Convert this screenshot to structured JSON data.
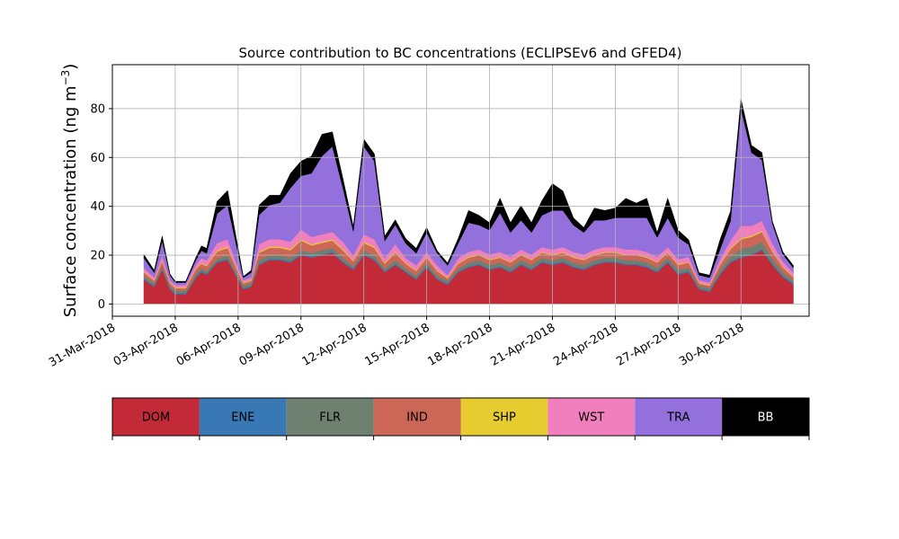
{
  "chart_data": {
    "type": "area",
    "stacked": true,
    "title": "Source contribution to BC concentrations (ECLIPSEv6 and GFED4)",
    "xlabel": "",
    "ylabel": "Surface concentration (ng m⁻³)",
    "ylabel_main": "Surface concentration (ng m",
    "ylabel_sup": "−3",
    "ylabel_close": ")",
    "xlim": [
      "2018-03-31T00:00",
      "2018-05-03T06:00"
    ],
    "ylim": [
      -5,
      98
    ],
    "yticks": [
      0,
      20,
      40,
      60,
      80
    ],
    "xticks": [
      "31-Mar-2018",
      "03-Apr-2018",
      "06-Apr-2018",
      "09-Apr-2018",
      "12-Apr-2018",
      "15-Apr-2018",
      "18-Apr-2018",
      "21-Apr-2018",
      "24-Apr-2018",
      "27-Apr-2018",
      "30-Apr-2018"
    ],
    "xtick_dates": [
      "2018-03-31",
      "2018-04-03",
      "2018-04-06",
      "2018-04-09",
      "2018-04-12",
      "2018-04-15",
      "2018-04-18",
      "2018-04-21",
      "2018-04-24",
      "2018-04-27",
      "2018-04-30"
    ],
    "grid": true,
    "legend_position": "below",
    "x": [
      "2018-04-01T12:00",
      "2018-04-02T00:00",
      "2018-04-02T09:00",
      "2018-04-02T18:00",
      "2018-04-03T00:00",
      "2018-04-03T12:00",
      "2018-04-04T00:00",
      "2018-04-04T06:00",
      "2018-04-04T12:00",
      "2018-04-05T00:00",
      "2018-04-05T12:00",
      "2018-04-05T21:00",
      "2018-04-06T06:00",
      "2018-04-06T15:00",
      "2018-04-07T00:00",
      "2018-04-07T12:00",
      "2018-04-08T00:00",
      "2018-04-08T12:00",
      "2018-04-09T00:00",
      "2018-04-09T12:00",
      "2018-04-10T00:00",
      "2018-04-10T12:00",
      "2018-04-11T00:00",
      "2018-04-11T12:00",
      "2018-04-12T00:00",
      "2018-04-12T12:00",
      "2018-04-13T00:00",
      "2018-04-13T12:00",
      "2018-04-14T00:00",
      "2018-04-14T12:00",
      "2018-04-15T00:00",
      "2018-04-15T12:00",
      "2018-04-16T00:00",
      "2018-04-16T12:00",
      "2018-04-17T00:00",
      "2018-04-17T12:00",
      "2018-04-18T00:00",
      "2018-04-18T12:00",
      "2018-04-19T00:00",
      "2018-04-19T12:00",
      "2018-04-20T00:00",
      "2018-04-20T12:00",
      "2018-04-21T00:00",
      "2018-04-21T12:00",
      "2018-04-22T00:00",
      "2018-04-22T12:00",
      "2018-04-23T00:00",
      "2018-04-23T12:00",
      "2018-04-24T00:00",
      "2018-04-24T12:00",
      "2018-04-25T00:00",
      "2018-04-25T12:00",
      "2018-04-26T00:00",
      "2018-04-26T12:00",
      "2018-04-27T00:00",
      "2018-04-27T12:00",
      "2018-04-28T00:00",
      "2018-04-28T12:00",
      "2018-04-29T00:00",
      "2018-04-29T12:00",
      "2018-04-30T00:00",
      "2018-04-30T12:00",
      "2018-05-01T00:00",
      "2018-05-01T12:00",
      "2018-05-02T00:00",
      "2018-05-02T12:00"
    ],
    "series": [
      {
        "name": "DOM",
        "color": "#c22a38",
        "values": [
          10,
          7,
          14,
          6,
          4,
          4,
          11,
          13,
          12,
          17,
          18,
          12,
          6,
          7,
          16,
          18,
          18,
          17,
          20,
          19,
          20,
          21,
          17,
          14,
          20,
          18,
          13,
          16,
          13,
          10,
          15,
          10,
          8,
          13,
          15,
          16,
          14,
          15,
          13,
          16,
          14,
          17,
          16,
          17,
          15,
          14,
          16,
          17,
          17,
          16,
          16,
          15,
          13,
          17,
          12,
          13,
          6,
          5,
          12,
          17,
          19,
          20,
          22,
          16,
          11,
          8
        ]
      },
      {
        "name": "ENE",
        "color": "#3878b4",
        "values": [
          0.5,
          0.5,
          0.5,
          0.5,
          0.5,
          0.5,
          0.5,
          0.5,
          0.5,
          0.5,
          0.5,
          0.5,
          0.5,
          0.5,
          0.5,
          0.5,
          0.5,
          0.5,
          0.5,
          0.5,
          0.5,
          0.5,
          0.5,
          0.5,
          0.5,
          0.5,
          0.5,
          0.5,
          0.5,
          0.5,
          0.5,
          0.5,
          0.5,
          0.5,
          0.5,
          0.5,
          0.5,
          0.5,
          0.5,
          0.5,
          0.5,
          0.5,
          0.5,
          0.5,
          0.5,
          0.5,
          0.5,
          0.5,
          0.5,
          0.5,
          0.5,
          0.5,
          0.5,
          0.5,
          0.5,
          0.5,
          0.5,
          0.5,
          0.5,
          0.5,
          0.5,
          0.5,
          0.5,
          0.5,
          0.5,
          0.5
        ]
      },
      {
        "name": "FLR",
        "color": "#6e8070",
        "values": [
          1,
          1,
          1,
          1,
          1,
          1,
          1,
          1,
          1,
          1,
          1.5,
          1,
          1,
          1,
          1.5,
          1.5,
          1.5,
          1.5,
          1.5,
          1.5,
          1.5,
          1.5,
          1.5,
          1,
          1.5,
          1.5,
          1,
          1.5,
          1,
          1,
          1.5,
          1,
          1,
          1,
          1.5,
          1.5,
          1.5,
          1.5,
          1.5,
          1.5,
          1.5,
          1.5,
          1.5,
          1.5,
          1.5,
          1.5,
          1.5,
          1.5,
          1.5,
          1.5,
          1.5,
          1.5,
          1.5,
          1.5,
          1.5,
          1.5,
          1,
          1,
          1.5,
          2,
          3,
          3,
          3,
          2,
          1.5,
          1
        ]
      },
      {
        "name": "IND",
        "color": "#cc6656",
        "values": [
          1.5,
          1,
          2,
          1,
          1,
          1,
          2,
          2,
          2,
          3,
          3,
          2,
          1,
          1,
          3,
          3,
          3,
          3,
          4,
          3,
          3,
          3,
          3,
          2,
          3,
          3,
          2,
          3,
          2,
          2,
          2,
          2,
          1,
          2,
          2,
          2,
          2,
          2,
          2,
          2,
          2,
          2,
          2,
          2,
          2,
          2,
          2,
          2,
          2,
          2,
          2,
          2,
          2,
          2,
          2,
          2,
          1,
          1,
          2,
          3,
          4,
          4,
          4,
          3,
          2,
          1.5
        ]
      },
      {
        "name": "SHP",
        "color": "#e6cc2e",
        "values": [
          0.3,
          0.3,
          0.3,
          0.3,
          0.3,
          0.3,
          0.3,
          0.3,
          0.3,
          0.5,
          0.5,
          0.3,
          0.3,
          0.3,
          0.5,
          0.5,
          0.5,
          0.5,
          0.5,
          0.5,
          0.5,
          0.5,
          0.5,
          0.3,
          0.5,
          0.5,
          0.3,
          0.5,
          0.3,
          0.3,
          0.3,
          0.3,
          0.3,
          0.3,
          0.3,
          0.3,
          0.3,
          0.3,
          0.3,
          0.3,
          0.3,
          0.3,
          0.3,
          0.3,
          0.3,
          0.3,
          0.3,
          0.3,
          0.3,
          0.3,
          0.3,
          0.3,
          0.3,
          0.3,
          0.3,
          0.3,
          0.3,
          0.3,
          0.3,
          0.5,
          0.5,
          0.5,
          0.5,
          0.3,
          0.3,
          0.3
        ]
      },
      {
        "name": "WST",
        "color": "#f27fbd",
        "values": [
          1.5,
          1,
          2,
          1,
          1,
          1,
          1.5,
          2,
          2,
          3,
          3,
          2,
          1,
          1,
          3,
          3,
          3,
          3,
          4,
          3,
          3,
          3,
          3,
          2,
          3,
          3,
          2,
          3,
          2,
          2,
          2,
          2,
          1,
          2,
          2,
          2,
          2,
          2,
          2,
          2,
          2,
          2,
          2,
          2,
          2,
          2,
          2,
          2,
          2,
          2,
          2,
          2,
          2,
          2,
          2,
          2,
          1,
          1,
          2,
          3,
          5,
          4,
          4,
          3,
          2,
          1.5
        ]
      },
      {
        "name": "TRA",
        "color": "#9370db",
        "values": [
          4,
          2,
          6,
          2,
          1,
          1,
          2,
          3,
          3,
          12,
          14,
          8,
          1,
          2,
          12,
          14,
          15,
          22,
          22,
          26,
          32,
          35,
          22,
          10,
          36,
          32,
          7,
          8,
          6,
          5,
          8,
          5,
          4,
          6,
          12,
          10,
          10,
          16,
          10,
          12,
          9,
          13,
          16,
          15,
          11,
          9,
          12,
          11,
          12,
          13,
          13,
          14,
          8,
          12,
          9,
          5,
          2,
          2,
          4,
          8,
          48,
          30,
          25,
          8,
          3,
          2
        ]
      },
      {
        "name": "BB",
        "color": "#000000",
        "values": [
          1.5,
          1,
          2,
          0.5,
          0.5,
          0.5,
          1,
          2,
          2,
          5,
          6,
          3,
          0.5,
          1,
          4,
          4,
          3,
          6,
          6,
          7,
          9,
          6,
          4,
          2,
          3,
          3,
          2,
          2,
          2,
          2,
          2,
          1,
          1,
          2,
          5,
          4,
          3,
          6,
          4,
          6,
          4,
          6,
          11,
          8,
          3,
          2,
          5,
          4,
          4,
          8,
          6,
          8,
          2,
          8,
          3,
          2,
          1,
          1,
          4,
          4,
          4,
          3,
          3,
          1,
          1,
          1
        ]
      }
    ],
    "legend_colorbar": [
      "DOM",
      "ENE",
      "FLR",
      "IND",
      "SHP",
      "WST",
      "TRA",
      "BB"
    ]
  }
}
